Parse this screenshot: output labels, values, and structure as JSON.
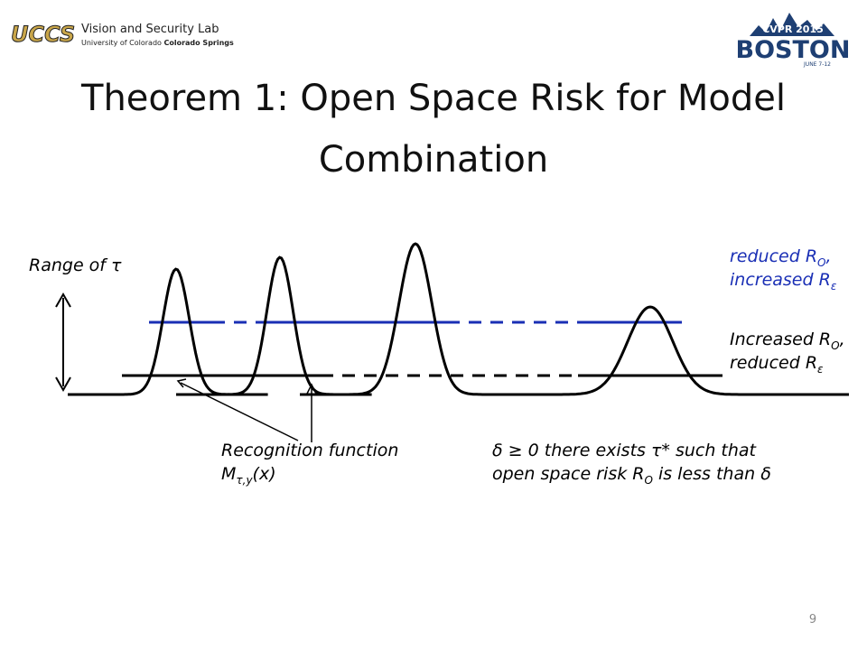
{
  "header": {
    "logo": "UCCS",
    "lab_name": "Vision and Security Lab",
    "lab_sub": "University of Colorado",
    "lab_sub_bold": "Colorado Springs",
    "conf": "CVPR 2015",
    "city": "BOSTON",
    "dates": "JUNE 7-12"
  },
  "title": [
    "Theorem 1: Open Space Risk for Model",
    "Combination"
  ],
  "annotations": {
    "range": [
      {
        "text": "Range of τ"
      }
    ],
    "top_right": [
      {
        "text": "reduced R",
        "sub": "O",
        "tail": ","
      },
      {
        "text": "increased R",
        "sub": "ε"
      }
    ],
    "mid_right": [
      {
        "text": "Increased R",
        "sub": "O",
        "tail": ","
      },
      {
        "text": "reduced R",
        "sub": "ε"
      }
    ],
    "recognition": [
      {
        "text": "Recognition function"
      },
      {
        "text": "M",
        "sub": "τ,y",
        "tail": "(x)"
      }
    ],
    "theorem": [
      {
        "text": "δ ≥ 0 there exists τ* such that"
      },
      {
        "text": "open space risk R",
        "sub": "O",
        "tail": " is less than δ"
      }
    ]
  },
  "page_number": "9"
}
